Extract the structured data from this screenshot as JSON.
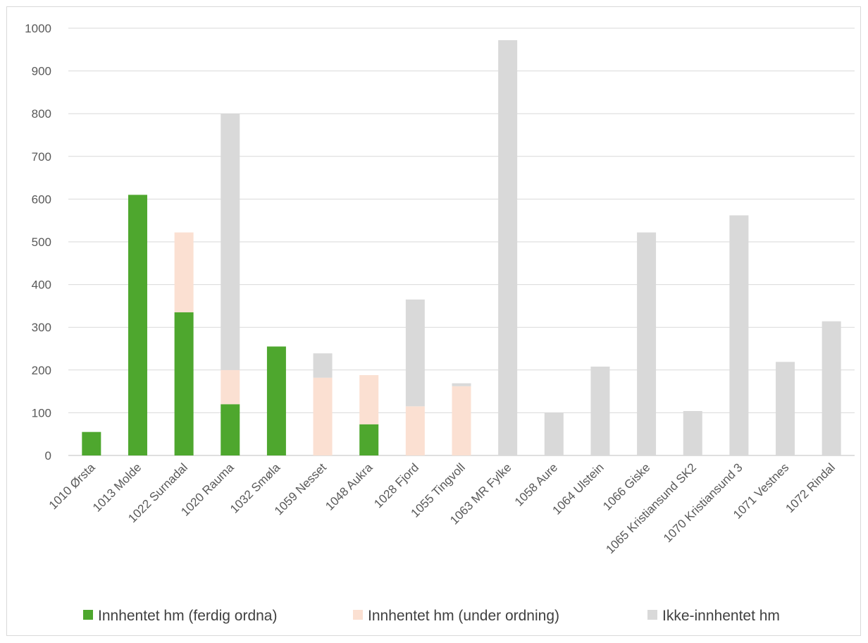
{
  "chart_data": {
    "type": "bar",
    "stacked": true,
    "title": "",
    "xlabel": "",
    "ylabel": "",
    "ylim": [
      0,
      1000
    ],
    "yticks": [
      0,
      100,
      200,
      300,
      400,
      500,
      600,
      700,
      800,
      900,
      1000
    ],
    "grid": true,
    "legend_position": "bottom",
    "categories": [
      "1010 Ørsta",
      "1013 Molde",
      "1022 Surnadal",
      "1020 Rauma",
      "1032 Smøla",
      "1059 Nesset",
      "1048 Aukra",
      "1028 Fjord",
      "1055 Tingvoll",
      "1063 MR Fylke",
      "1058 Aure",
      "1064 Ulstein",
      "1066 Giske",
      "1065 Kristiansund SK2",
      "1070 Kristiansund 3",
      "1071 Vestnes",
      "1072 Rindal"
    ],
    "series": [
      {
        "name": "Innhentet hm (ferdig ordna)",
        "color": "#4ea72e",
        "values": [
          55,
          610,
          335,
          120,
          255,
          0,
          73,
          0,
          0,
          0,
          0,
          0,
          0,
          0,
          0,
          0,
          0
        ]
      },
      {
        "name": "Innhentet hm (under ordning)",
        "color": "#fbe0d2",
        "values": [
          0,
          0,
          187,
          80,
          0,
          182,
          115,
          115,
          162,
          0,
          0,
          0,
          0,
          0,
          0,
          0,
          0
        ]
      },
      {
        "name": "Ikke-innhentet hm",
        "color": "#d9d9d9",
        "values": [
          0,
          0,
          0,
          600,
          0,
          57,
          0,
          250,
          7,
          972,
          100,
          208,
          522,
          104,
          562,
          219,
          314
        ]
      }
    ]
  }
}
